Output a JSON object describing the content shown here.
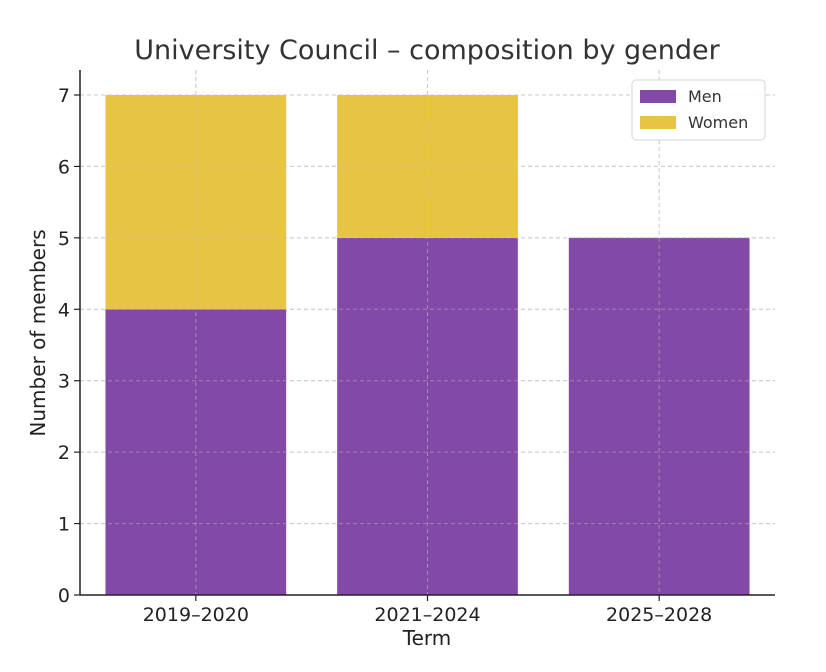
{
  "chart_data": {
    "type": "bar",
    "stacked": true,
    "title": "University Council – composition by gender",
    "xlabel": "Term",
    "ylabel": "Number of members",
    "categories": [
      "2019–2020",
      "2021–2024",
      "2025–2028"
    ],
    "series": [
      {
        "name": "Men",
        "values": [
          4,
          5,
          5
        ],
        "color": "#8349a6"
      },
      {
        "name": "Women",
        "values": [
          3,
          2,
          0
        ],
        "color": "#e8c444"
      }
    ],
    "ylim": [
      0,
      7.35
    ],
    "yticks": [
      0,
      1,
      2,
      3,
      4,
      5,
      6,
      7
    ],
    "grid": true,
    "legend_position": "top-right"
  }
}
